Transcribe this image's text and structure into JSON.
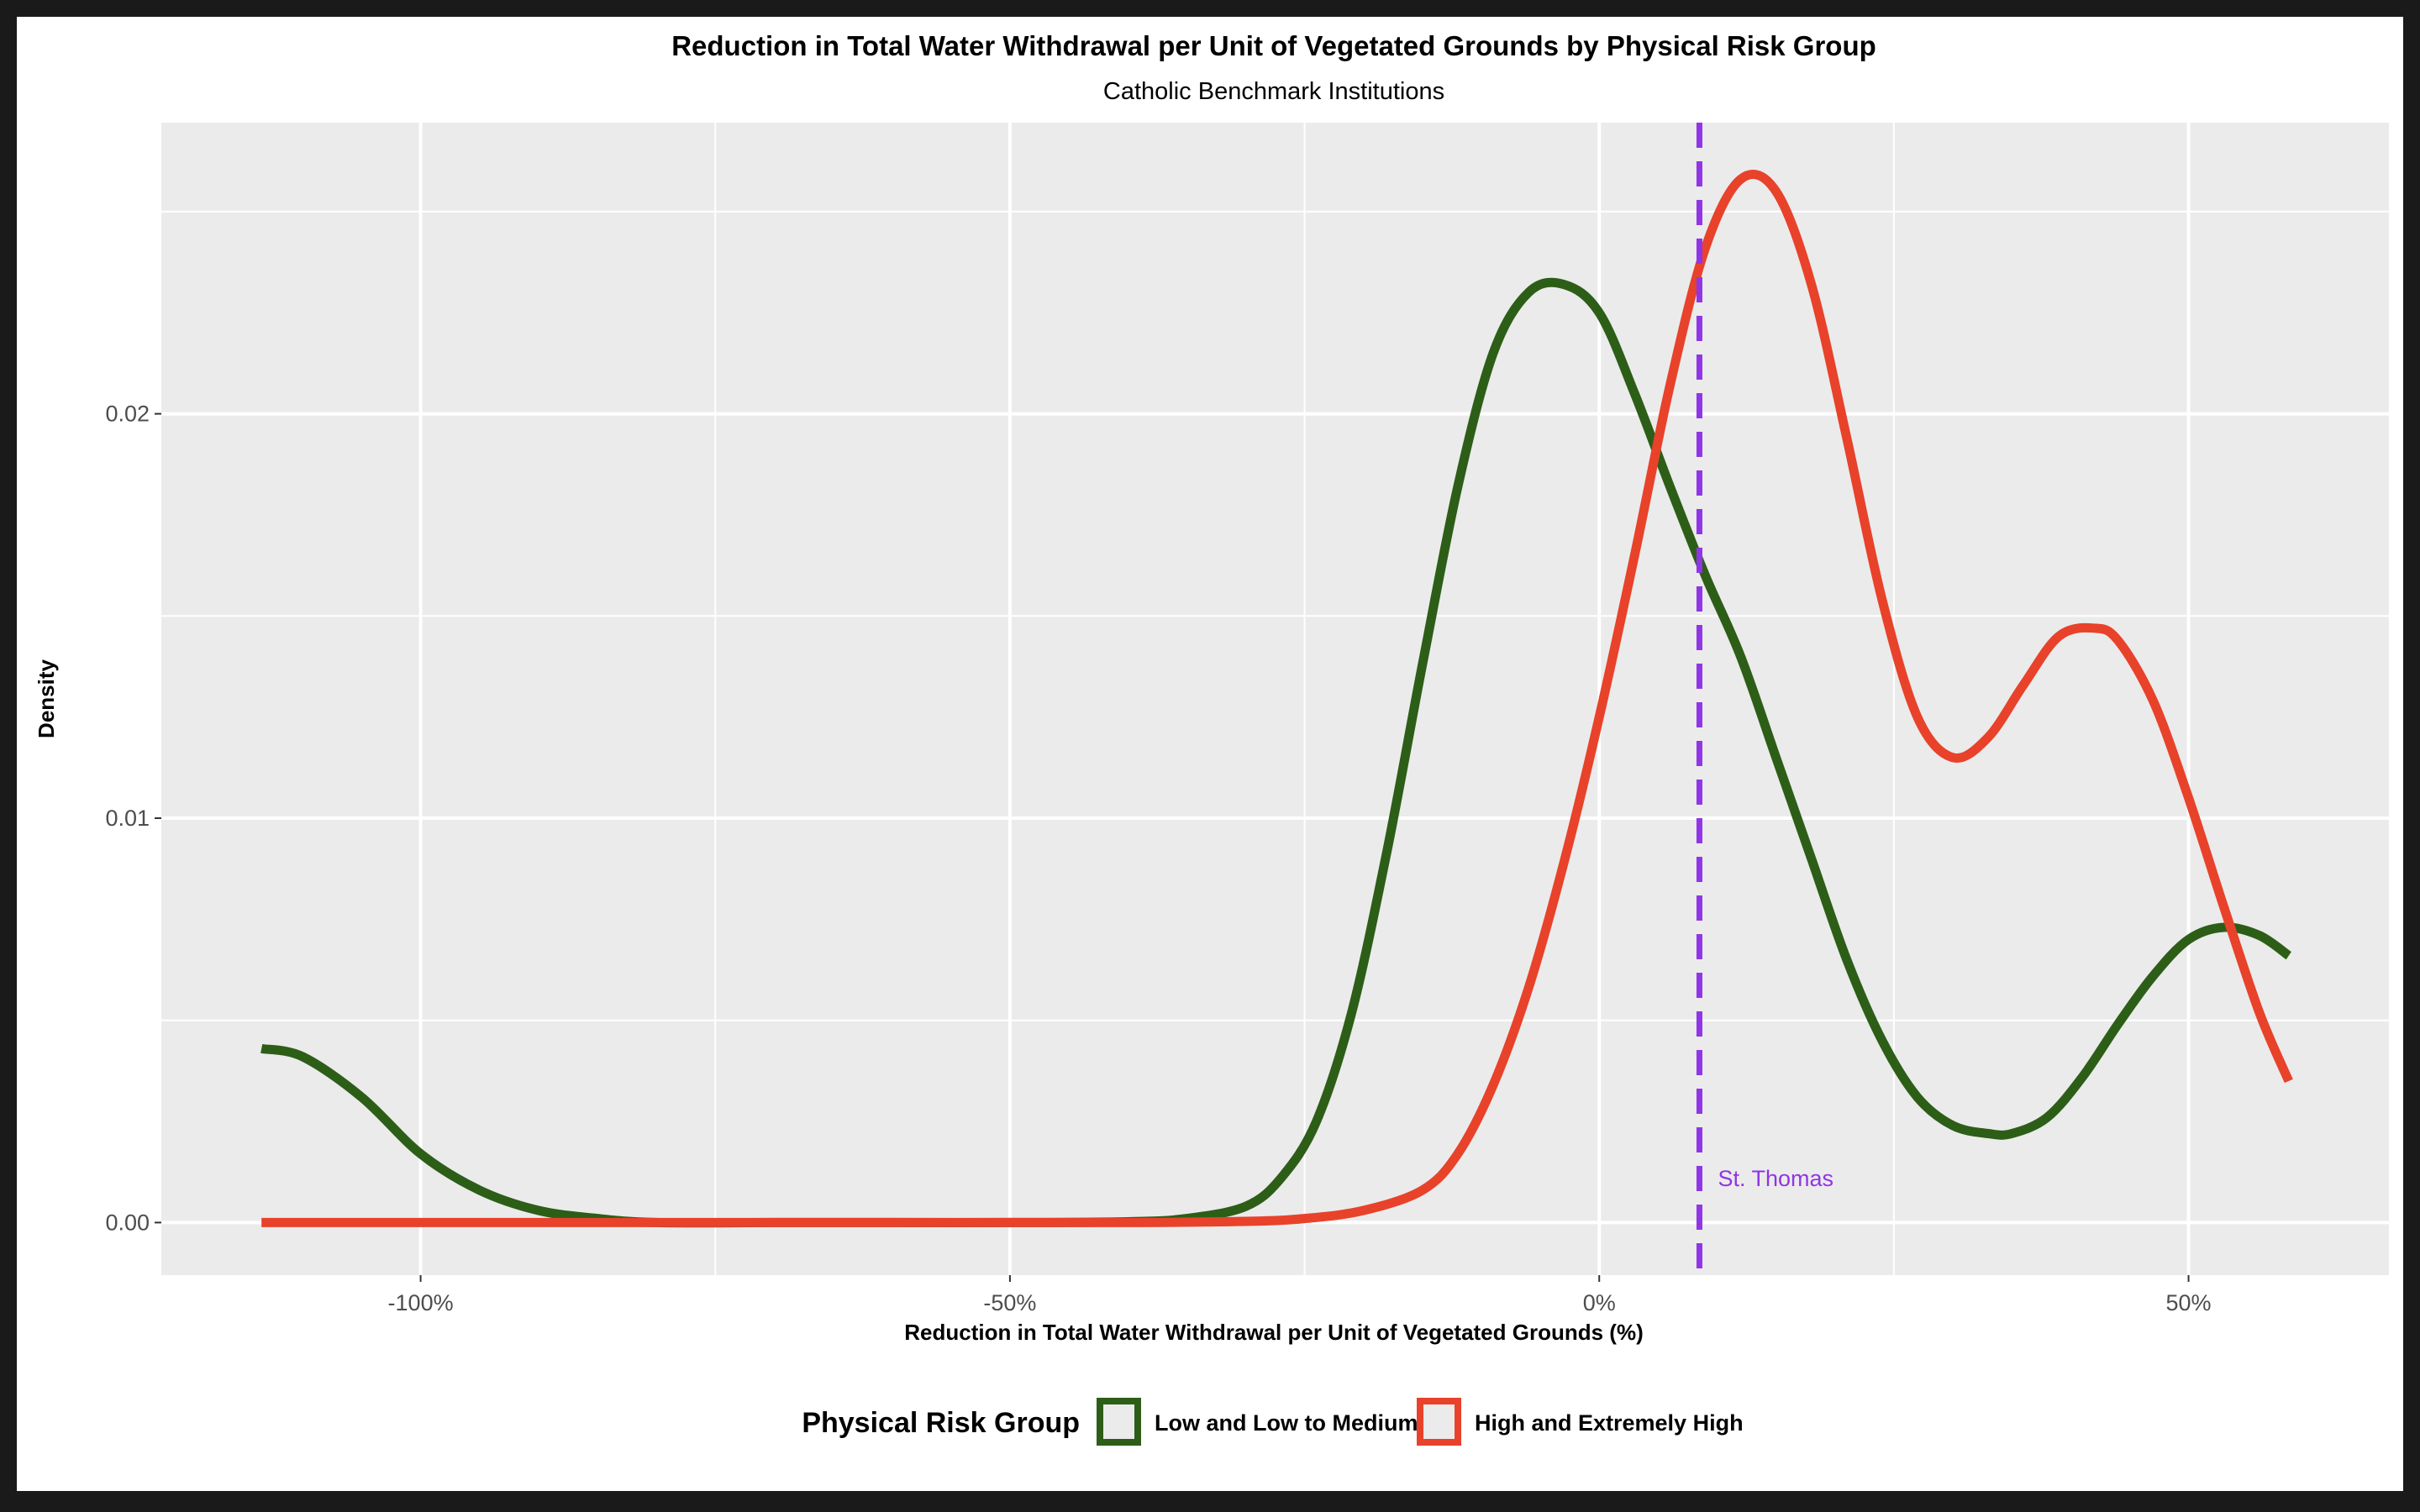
{
  "chart_data": {
    "type": "line",
    "title": "Reduction in Total Water Withdrawal per Unit of Vegetated Grounds by Physical Risk Group",
    "subtitle": "Catholic Benchmark Institutions",
    "xlabel": "Reduction in Total Water Withdrawal per Unit of Vegetated Grounds (%)",
    "ylabel": "Density",
    "xlim": [
      -122,
      67
    ],
    "ylim": [
      -0.0013,
      0.0272
    ],
    "x_ticks": [
      {
        "value": -100,
        "label": "-100%"
      },
      {
        "value": -50,
        "label": "-50%"
      },
      {
        "value": 0,
        "label": "0%"
      },
      {
        "value": 50,
        "label": "50%"
      }
    ],
    "x_minor_ticks": [
      -75,
      -25,
      25
    ],
    "y_ticks": [
      {
        "value": 0.0,
        "label": "0.00"
      },
      {
        "value": 0.01,
        "label": "0.01"
      },
      {
        "value": 0.02,
        "label": "0.02"
      }
    ],
    "y_minor_ticks": [
      0.005,
      0.015,
      0.025
    ],
    "grid": true,
    "panel_background": "#ebebeb",
    "legend": {
      "title": "Physical Risk Group",
      "position": "bottom"
    },
    "series": [
      {
        "name": "Low and Low to Medium",
        "color": "#2d5e17",
        "x": [
          -113.5,
          -110,
          -105,
          -100,
          -95,
          -90,
          -85,
          -80,
          -70,
          -60,
          -50,
          -40,
          -35,
          -30,
          -27,
          -24,
          -21,
          -18,
          -15,
          -12,
          -9,
          -6,
          -3,
          0,
          3,
          6,
          9,
          12,
          15,
          18,
          21,
          24,
          27,
          30,
          33,
          35,
          38,
          41,
          44,
          47,
          50,
          53,
          56,
          58.5
        ],
        "values": [
          0.0043,
          0.0041,
          0.0031,
          0.0017,
          0.0008,
          0.0003,
          0.0001,
          0.0,
          0.0,
          0.0,
          0.0,
          2e-05,
          0.0001,
          0.0004,
          0.0011,
          0.0025,
          0.0052,
          0.0092,
          0.0138,
          0.0182,
          0.0215,
          0.023,
          0.0232,
          0.0225,
          0.0205,
          0.0182,
          0.016,
          0.014,
          0.0115,
          0.009,
          0.0065,
          0.0045,
          0.0031,
          0.0024,
          0.0022,
          0.0022,
          0.0026,
          0.0036,
          0.0049,
          0.0061,
          0.007,
          0.0073,
          0.0071,
          0.0066
        ]
      },
      {
        "name": "High and Extremely High",
        "color": "#e8422b",
        "x": [
          -113.5,
          -90,
          -60,
          -40,
          -30,
          -25,
          -20,
          -15,
          -12,
          -9,
          -6,
          -3,
          0,
          3,
          6,
          9,
          12,
          15,
          18,
          21,
          24,
          27,
          30,
          33,
          36,
          39,
          42,
          44,
          47,
          50,
          53,
          56,
          58.5
        ],
        "values": [
          0.0,
          0.0,
          0.0,
          0.0,
          3e-05,
          0.0001,
          0.0003,
          0.0008,
          0.0017,
          0.0034,
          0.0058,
          0.0089,
          0.0125,
          0.0165,
          0.0207,
          0.0241,
          0.0258,
          0.0255,
          0.0232,
          0.0194,
          0.0154,
          0.0125,
          0.0115,
          0.012,
          0.0133,
          0.0145,
          0.0147,
          0.0144,
          0.0129,
          0.0105,
          0.0078,
          0.0052,
          0.0035
        ]
      }
    ],
    "reference_line": {
      "x": 8.5,
      "label": "St. Thomas",
      "color": "#9035e6",
      "style": "dashed"
    }
  }
}
